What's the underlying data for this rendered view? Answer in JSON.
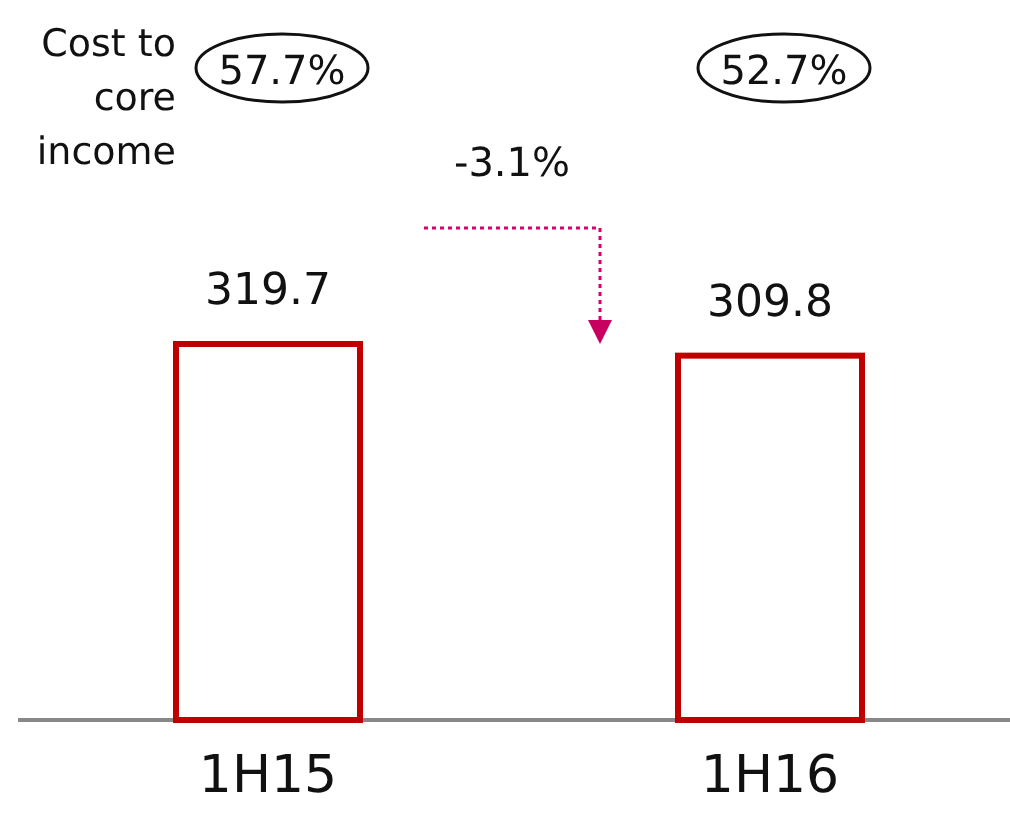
{
  "chart_data": {
    "type": "bar",
    "categories": [
      "1H15",
      "1H16"
    ],
    "values": [
      319.7,
      309.8
    ],
    "color": "#c00000",
    "data_labels": true,
    "annotations": [
      "Cost to core income",
      "57.7%",
      "52.7%",
      "-3.1%"
    ]
  }
}
